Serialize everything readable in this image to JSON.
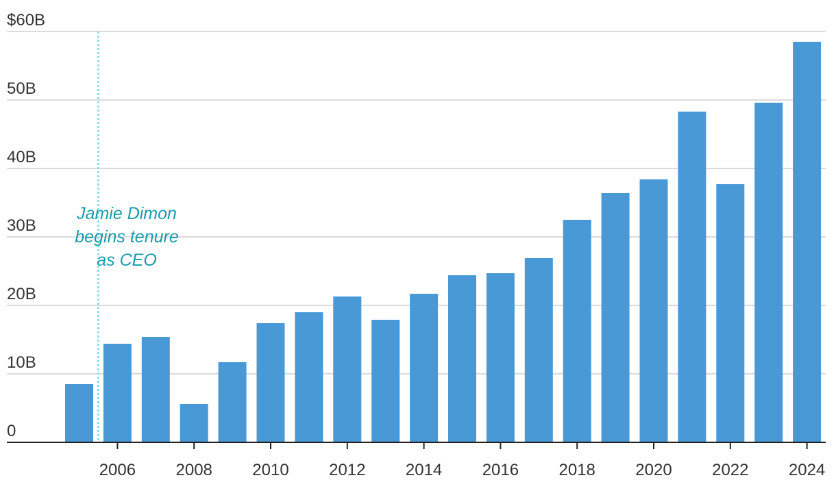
{
  "chart_data": {
    "type": "bar",
    "title": "",
    "xlabel": "",
    "ylabel": "",
    "categories": [
      "2005",
      "2006",
      "2007",
      "2008",
      "2009",
      "2010",
      "2011",
      "2012",
      "2013",
      "2014",
      "2015",
      "2016",
      "2017",
      "2018",
      "2019",
      "2020",
      "2021",
      "2022",
      "2023",
      "2024"
    ],
    "values": [
      8.5,
      14.4,
      15.4,
      5.6,
      11.7,
      17.4,
      19.0,
      21.3,
      17.9,
      21.7,
      24.4,
      24.7,
      26.9,
      32.5,
      36.4,
      38.4,
      48.3,
      37.7,
      49.6,
      58.5
    ],
    "ylim": [
      0,
      60
    ],
    "y_ticks": [
      {
        "value": 0,
        "label": "0"
      },
      {
        "value": 10,
        "label": "10B"
      },
      {
        "value": 20,
        "label": "20B"
      },
      {
        "value": 30,
        "label": "30B"
      },
      {
        "value": 40,
        "label": "40B"
      },
      {
        "value": 50,
        "label": "50B"
      },
      {
        "value": 60,
        "label": "$60B"
      }
    ],
    "x_tick_labels": [
      "2006",
      "2008",
      "2010",
      "2012",
      "2014",
      "2016",
      "2018",
      "2020",
      "2022",
      "2024"
    ],
    "grid": true,
    "bar_color": "#4899d6",
    "annotation": {
      "x": 2005.5,
      "lines": [
        "Jamie Dimon",
        "begins tenure",
        "as CEO"
      ],
      "color": "#1a9bad",
      "line_color": "#7fe3ea"
    }
  }
}
